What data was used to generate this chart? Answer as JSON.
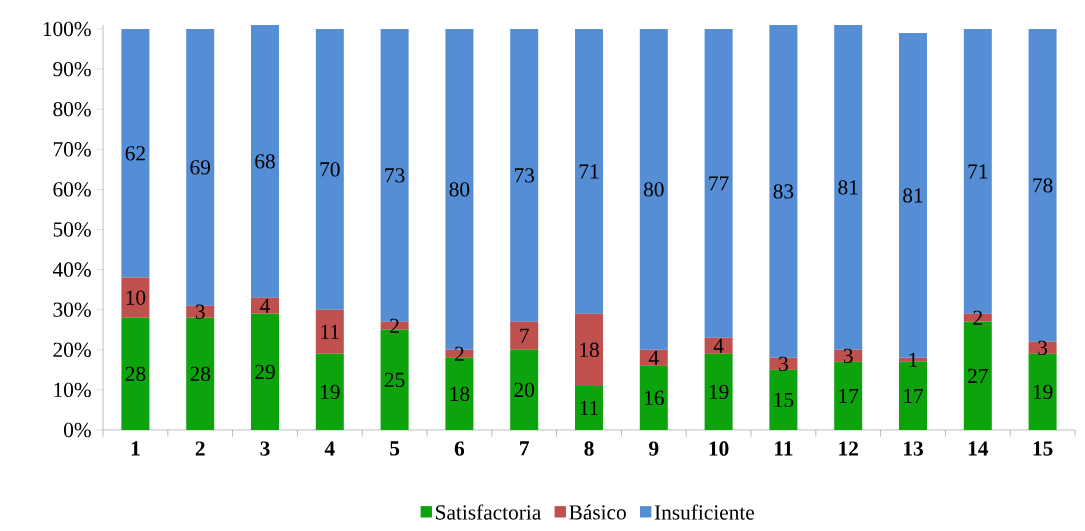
{
  "chart_data": {
    "type": "bar",
    "stacked": true,
    "categories": [
      "1",
      "2",
      "3",
      "4",
      "5",
      "6",
      "7",
      "8",
      "9",
      "10",
      "11",
      "12",
      "13",
      "14",
      "15"
    ],
    "series": [
      {
        "name": "Satisfactoria",
        "color": "#0ca30c",
        "values": [
          28,
          28,
          29,
          19,
          25,
          18,
          20,
          11,
          16,
          19,
          15,
          17,
          17,
          27,
          19
        ]
      },
      {
        "name": "Básico",
        "color": "#c0504d",
        "values": [
          10,
          3,
          4,
          11,
          2,
          2,
          7,
          18,
          4,
          4,
          3,
          3,
          1,
          2,
          3
        ]
      },
      {
        "name": "Insuficiente",
        "color": "#558ed5",
        "values": [
          62,
          69,
          68,
          70,
          73,
          80,
          73,
          71,
          80,
          77,
          83,
          81,
          81,
          71,
          78
        ]
      }
    ],
    "ylim": [
      0,
      101
    ],
    "yticks": [
      {
        "value": 0,
        "label": "0%"
      },
      {
        "value": 10,
        "label": "10%"
      },
      {
        "value": 20,
        "label": "20%"
      },
      {
        "value": 30,
        "label": "30%"
      },
      {
        "value": 40,
        "label": "40%"
      },
      {
        "value": 50,
        "label": "50%"
      },
      {
        "value": 60,
        "label": "60%"
      },
      {
        "value": 70,
        "label": "70%"
      },
      {
        "value": 80,
        "label": "80%"
      },
      {
        "value": 90,
        "label": "90%"
      },
      {
        "value": 100,
        "label": "100%"
      }
    ],
    "data_labels": true,
    "legend": "bottom"
  }
}
